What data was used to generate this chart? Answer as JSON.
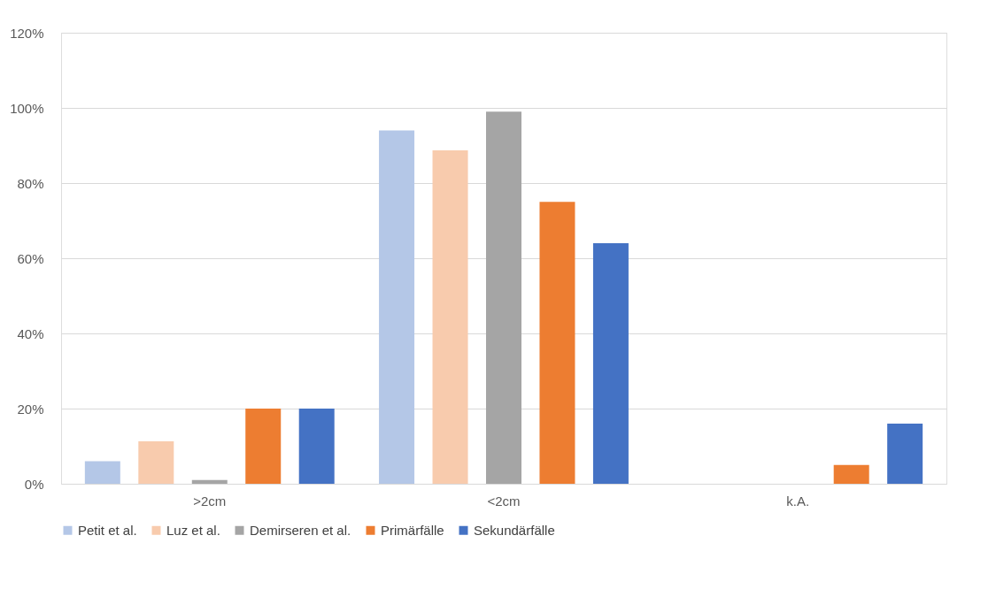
{
  "chart_data": {
    "type": "bar",
    "categories": [
      ">2cm",
      "<2cm",
      "k.A."
    ],
    "series": [
      {
        "name": "Petit et al.",
        "color": "#b4c7e7",
        "values": [
          6,
          94,
          0
        ]
      },
      {
        "name": "Luz et al.",
        "color": "#f8cbad",
        "values": [
          11.3,
          88.7,
          0
        ]
      },
      {
        "name": "Demirseren et al.",
        "color": "#a5a5a5",
        "values": [
          1,
          99,
          0
        ]
      },
      {
        "name": "Primärfälle",
        "color": "#ed7d31",
        "values": [
          20,
          75,
          5
        ]
      },
      {
        "name": "Sekundärfälle",
        "color": "#4472c4",
        "values": [
          20,
          64,
          16
        ]
      }
    ],
    "ylim": [
      0,
      120
    ],
    "yticks": [
      {
        "value": 0,
        "label": "0%"
      },
      {
        "value": 20,
        "label": "20%"
      },
      {
        "value": 40,
        "label": "40%"
      },
      {
        "value": 60,
        "label": "60%"
      },
      {
        "value": 80,
        "label": "80%"
      },
      {
        "value": 100,
        "label": "100%"
      },
      {
        "value": 120,
        "label": "120%"
      }
    ],
    "grid": "y",
    "legend": "bottom"
  }
}
